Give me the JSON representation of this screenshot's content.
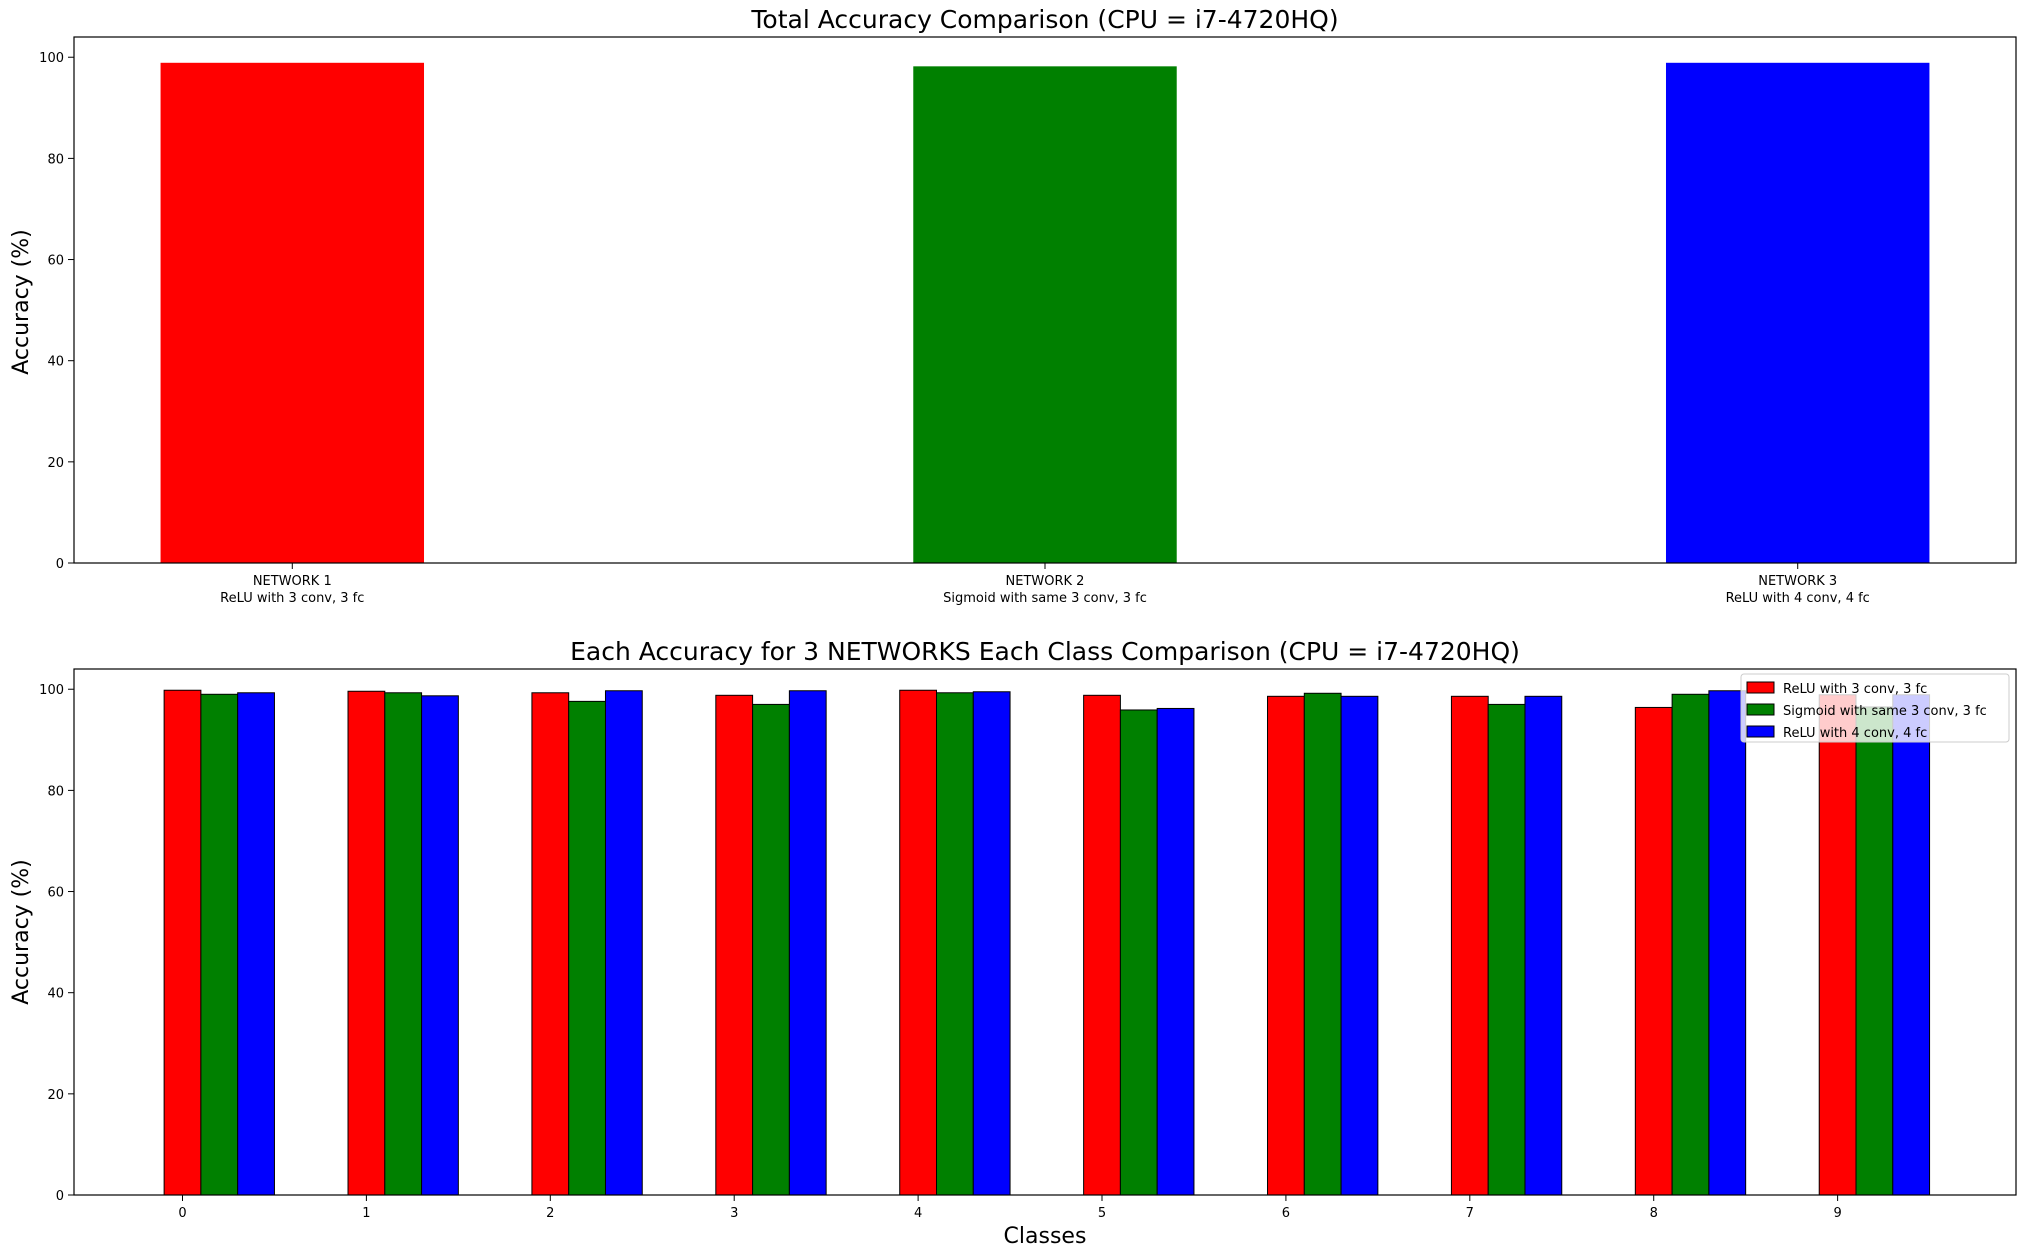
{
  "chart_data": [
    {
      "type": "bar",
      "title": "Total Accuracy Comparison (CPU = i7-4720HQ)",
      "xlabel": "",
      "ylabel": "Accuracy (%)",
      "ylim": [
        0,
        104
      ],
      "yticks": [
        0,
        20,
        40,
        60,
        80,
        100
      ],
      "categories": [
        [
          "NETWORK 1",
          "ReLU with 3 conv, 3 fc"
        ],
        [
          "NETWORK 2",
          "Sigmoid with same 3 conv, 3 fc"
        ],
        [
          "NETWORK 3",
          "ReLU with 4 conv, 4 fc"
        ]
      ],
      "values": [
        98.9,
        98.2,
        98.9
      ],
      "colors": [
        "#ff0000",
        "#008000",
        "#0000ff"
      ],
      "grid": false,
      "legend": false
    },
    {
      "type": "bar",
      "title": "Each Accuracy for 3 NETWORKS Each Class Comparison (CPU = i7-4720HQ)",
      "xlabel": "Classes",
      "ylabel": "Accuracy (%)",
      "ylim": [
        0,
        104
      ],
      "yticks": [
        0,
        20,
        40,
        60,
        80,
        100
      ],
      "categories": [
        "0",
        "1",
        "2",
        "3",
        "4",
        "5",
        "6",
        "7",
        "8",
        "9"
      ],
      "series": [
        {
          "name": "ReLU with 3 conv, 3 fc",
          "color": "#ff0000",
          "values": [
            99.8,
            99.6,
            99.3,
            98.8,
            99.8,
            98.8,
            98.6,
            98.6,
            96.4,
            98.9
          ]
        },
        {
          "name": "Sigmoid with same 3 conv, 3 fc",
          "color": "#008000",
          "values": [
            99.0,
            99.3,
            97.6,
            97.0,
            99.3,
            95.9,
            99.2,
            97.0,
            99.0,
            96.5
          ]
        },
        {
          "name": "ReLU with 4 conv, 4 fc",
          "color": "#0000ff",
          "values": [
            99.3,
            98.7,
            99.7,
            99.7,
            99.5,
            96.2,
            98.6,
            98.6,
            99.7,
            98.9
          ]
        }
      ],
      "grid": false,
      "legend": "top-right"
    }
  ]
}
